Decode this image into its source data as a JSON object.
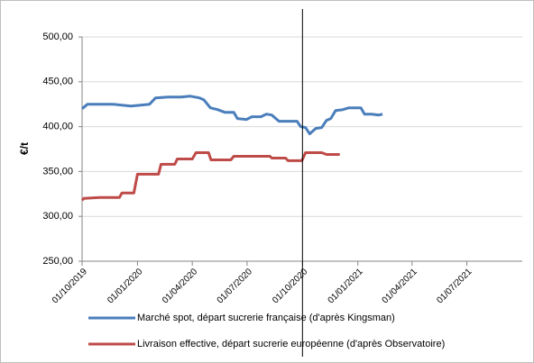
{
  "chart_data": {
    "type": "line",
    "ylabel": "€/t",
    "ylim": [
      250,
      500
    ],
    "yticks": [
      {
        "value": 250,
        "label": "250,00"
      },
      {
        "value": 300,
        "label": "300,00"
      },
      {
        "value": 350,
        "label": "350,00"
      },
      {
        "value": 400,
        "label": "400,00"
      },
      {
        "value": 450,
        "label": "450,00"
      },
      {
        "value": 500,
        "label": "500,00"
      }
    ],
    "xlim": [
      "01/10/2019",
      "01/10/2021"
    ],
    "xticks": [
      "01/10/2019",
      "01/01/2020",
      "01/04/2020",
      "01/07/2020",
      "01/10/2020",
      "01/01/2021",
      "01/04/2021",
      "01/07/2021"
    ],
    "grid": true,
    "vline": "01/10/2020",
    "legend": "bottom",
    "series": [
      {
        "name": "Marché spot, départ sucrerie française (d'après Kingsman)",
        "color": "#4a7ebb",
        "x": [
          "01/10/2019",
          "10/10/2019",
          "30/10/2019",
          "21/11/2019",
          "06/12/2019",
          "21/12/2019",
          "06/01/2020",
          "21/01/2020",
          "31/01/2020",
          "20/02/2020",
          "13/03/2020",
          "28/03/2020",
          "13/04/2020",
          "20/04/2020",
          "01/05/2020",
          "13/05/2020",
          "25/05/2020",
          "09/06/2020",
          "15/06/2020",
          "30/06/2020",
          "09/07/2020",
          "24/07/2020",
          "02/08/2020",
          "11/08/2020",
          "23/08/2020",
          "10/09/2020",
          "22/09/2020",
          "28/09/2020",
          "06/10/2020",
          "13/10/2020",
          "23/10/2020",
          "02/11/2020",
          "10/11/2020",
          "17/11/2020",
          "25/11/2020",
          "07/12/2020",
          "17/12/2020",
          "06/01/2021",
          "12/01/2021",
          "24/01/2021",
          "05/02/2021",
          "11/02/2021"
        ],
        "values": [
          420,
          425,
          425,
          425,
          424,
          423,
          424,
          425,
          432,
          433,
          433,
          434,
          432,
          430,
          421,
          419,
          416,
          416,
          409,
          408,
          411,
          411,
          414,
          413,
          406,
          406,
          406,
          400,
          399,
          392,
          398,
          399,
          407,
          409,
          418,
          419,
          421,
          421,
          414,
          414,
          413,
          414
        ]
      },
      {
        "name": "Livraison effective, départ sucrerie européenne (d'après Observatoire)",
        "color": "#be4b48",
        "x": [
          "01/10/2019",
          "04/10/2019",
          "30/10/2019",
          "02/12/2019",
          "06/12/2019",
          "26/12/2019",
          "01/01/2020",
          "05/02/2020",
          "09/02/2020",
          "03/03/2020",
          "07/03/2020",
          "01/04/2020",
          "07/04/2020",
          "28/04/2020",
          "02/05/2020",
          "04/06/2020",
          "09/06/2020",
          "08/08/2020",
          "11/08/2020",
          "03/09/2020",
          "07/09/2020",
          "30/09/2020",
          "06/10/2020",
          "02/11/2020",
          "10/11/2020",
          "02/12/2020"
        ],
        "values": [
          318,
          320,
          321,
          321,
          326,
          326,
          347,
          347,
          358,
          358,
          364,
          364,
          371,
          371,
          363,
          363,
          367,
          367,
          365,
          365,
          362,
          362,
          371,
          371,
          369,
          369
        ]
      }
    ]
  }
}
